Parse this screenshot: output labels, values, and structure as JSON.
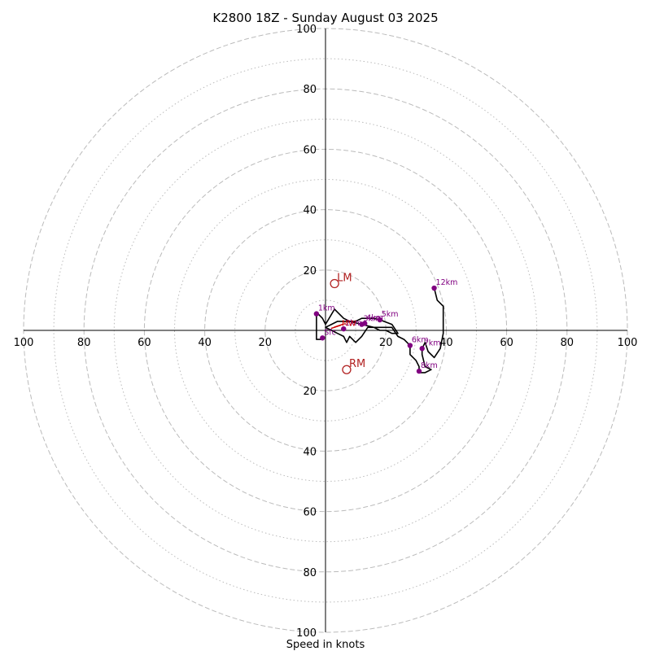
{
  "chart_data": {
    "type": "hodograph",
    "title": "K2800 18Z - Sunday August 03 2025",
    "xlabel": "Speed in knots",
    "units": "knots",
    "range": [
      -100,
      100
    ],
    "ring_major": [
      20,
      40,
      60,
      80,
      100
    ],
    "ring_minor": [
      10,
      30,
      50,
      70,
      90
    ],
    "grid": true,
    "tick_labels": {
      "x": [
        "100",
        "80",
        "60",
        "40",
        "20",
        "20",
        "40",
        "60",
        "80",
        "100"
      ],
      "y_top": [
        "100",
        "80",
        "60",
        "40",
        "20"
      ],
      "y_bottom": [
        "20",
        "40",
        "60",
        "80",
        "100"
      ]
    },
    "colors": {
      "trace": "#000000",
      "height_points": "#800080",
      "storm_motion": "#b22222",
      "mean_wind": "#cc0000",
      "grid": "#bbbbbb"
    },
    "trace": [
      [
        -1,
        -3
      ],
      [
        -3,
        -3
      ],
      [
        -3,
        2
      ],
      [
        -3,
        6
      ],
      [
        -1,
        4
      ],
      [
        0,
        2
      ],
      [
        3,
        7
      ],
      [
        6,
        4
      ],
      [
        8,
        3
      ],
      [
        10,
        3
      ],
      [
        12,
        4
      ],
      [
        14,
        4
      ],
      [
        16,
        4
      ],
      [
        18,
        3.5
      ],
      [
        22,
        2
      ],
      [
        24,
        -1
      ],
      [
        22,
        -1
      ],
      [
        20,
        0
      ],
      [
        18,
        0
      ],
      [
        16,
        1
      ],
      [
        14,
        1
      ],
      [
        12,
        -2
      ],
      [
        10,
        -4
      ],
      [
        8,
        -2
      ],
      [
        7,
        -4
      ],
      [
        6,
        -2
      ],
      [
        4,
        -1
      ],
      [
        2,
        0
      ],
      [
        0,
        1
      ],
      [
        2,
        2
      ],
      [
        4,
        3
      ],
      [
        8,
        3
      ],
      [
        12,
        2
      ],
      [
        16,
        1
      ],
      [
        20,
        1
      ],
      [
        22,
        1
      ],
      [
        24,
        -2
      ],
      [
        26,
        -3
      ],
      [
        28,
        -5
      ],
      [
        28,
        -8
      ],
      [
        30,
        -10
      ],
      [
        31,
        -12
      ],
      [
        31,
        -14
      ],
      [
        33,
        -14
      ],
      [
        35,
        -13
      ],
      [
        33,
        -12
      ],
      [
        32,
        -8
      ],
      [
        32,
        -6
      ],
      [
        33,
        -4
      ],
      [
        34,
        -7
      ],
      [
        36,
        -9
      ],
      [
        38,
        -6
      ],
      [
        39,
        -1
      ],
      [
        39,
        0
      ],
      [
        39,
        3
      ],
      [
        39,
        8
      ],
      [
        37,
        10
      ],
      [
        36,
        14
      ]
    ],
    "height_points": [
      {
        "label": "Sfc",
        "x": -1,
        "y": -2.5
      },
      {
        "label": "1km",
        "x": -3,
        "y": 5.5
      },
      {
        "label": "2km",
        "x": 6,
        "y": 0.5
      },
      {
        "label": "3km",
        "x": 12,
        "y": 2
      },
      {
        "label": "4km",
        "x": 13,
        "y": 2.3
      },
      {
        "label": "5km",
        "x": 18,
        "y": 3.5
      },
      {
        "label": "6km",
        "x": 28,
        "y": -5
      },
      {
        "label": "7km",
        "x": 32,
        "y": -6
      },
      {
        "label": "8km",
        "x": 31,
        "y": -13.5
      },
      {
        "label": "12km",
        "x": 36,
        "y": 14
      }
    ],
    "storm_motion": [
      {
        "label": "LM",
        "x": 3,
        "y": 15.5
      },
      {
        "label": "RM",
        "x": 7,
        "y": -13
      }
    ],
    "mean_wind": [
      {
        "label": "MW",
        "x": 7,
        "y": 2
      }
    ],
    "shear_markers": [
      {
        "x": 3.5,
        "y": 1.2
      },
      {
        "x": 4.5,
        "y": 1.6
      }
    ]
  }
}
